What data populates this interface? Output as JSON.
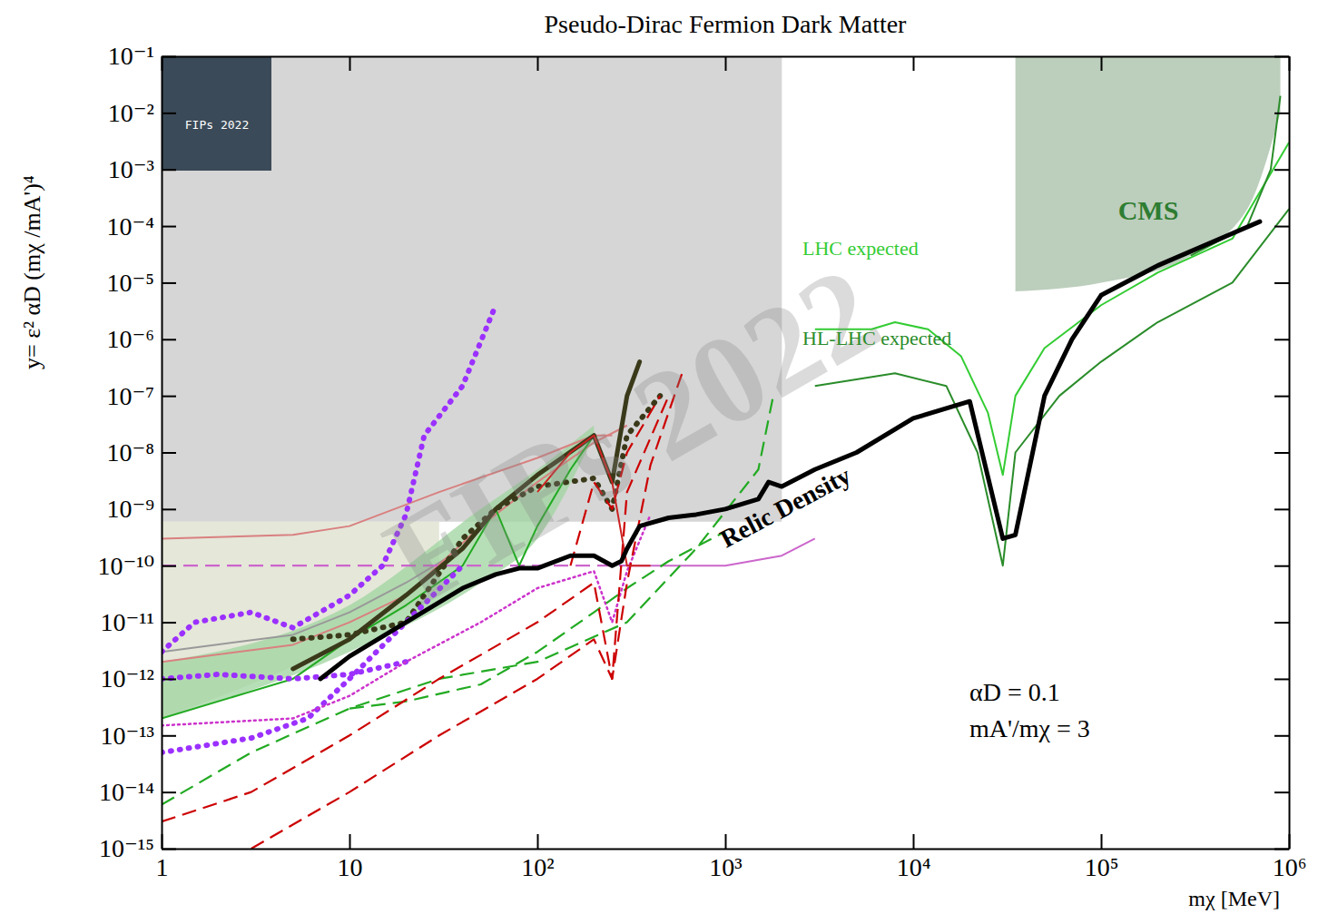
{
  "chart_data": {
    "type": "line",
    "title": "Pseudo-Dirac Fermion Dark Matter",
    "x_label": "mχ [MeV]",
    "y_label": "y= ε² αD (mχ /mA')⁴",
    "log": true,
    "grid": false,
    "xlim": [
      1,
      1000000
    ],
    "ylim": [
      1e-15,
      0.1
    ],
    "xticks": [
      1,
      10,
      {
        "value": 100,
        "label": "10²"
      },
      {
        "value": 1000,
        "label": "10³"
      },
      {
        "value": 10000,
        "label": "10⁴"
      },
      {
        "value": 100000,
        "label": "10⁵"
      },
      {
        "value": 1000000,
        "label": "10⁶"
      }
    ],
    "yticks": [
      {
        "value": 1e-15,
        "label": "10⁻¹⁵"
      },
      {
        "value": 1e-14,
        "label": "10⁻¹⁴"
      },
      {
        "value": 1e-13,
        "label": "10⁻¹³"
      },
      {
        "value": 1e-12,
        "label": "10⁻¹²"
      },
      {
        "value": 1e-11,
        "label": "10⁻¹¹"
      },
      {
        "value": 1e-10,
        "label": "10⁻¹⁰"
      },
      {
        "value": 1e-09,
        "label": "10⁻⁹"
      },
      {
        "value": 1e-08,
        "label": "10⁻⁸"
      },
      {
        "value": 1e-07,
        "label": "10⁻⁷"
      },
      {
        "value": 1e-06,
        "label": "10⁻⁶"
      },
      {
        "value": 1e-05,
        "label": "10⁻⁵"
      },
      {
        "value": 0.0001,
        "label": "10⁻⁴"
      },
      {
        "value": 0.001,
        "label": "10⁻³"
      },
      {
        "value": 0.01,
        "label": "10⁻²"
      },
      {
        "value": 0.1,
        "label": "10⁻¹"
      }
    ],
    "annotations": [
      {
        "text": "CMS",
        "color": "#2e7d32"
      },
      {
        "text": "LHC expected",
        "color": "#33cc33"
      },
      {
        "text": "HL-LHC expected",
        "color": "#2a8c2a"
      },
      {
        "text": "Relic Density",
        "color": "#000000"
      },
      {
        "text": "αD = 0.1",
        "color": "#000000"
      },
      {
        "text": "mA'/mχ = 3",
        "color": "#000000"
      }
    ],
    "watermark": "FIPs 2022",
    "logo": "FIPs 2022",
    "series": [
      {
        "type": "band",
        "color": "#c8c8c8",
        "x": [
          1,
          2000
        ],
        "values": [
          0.1,
          0.1
        ],
        "lower": [
          6e-10,
          6e-10
        ]
      },
      {
        "type": "band",
        "color": "#dcdfcc",
        "x": [
          1,
          10,
          30
        ],
        "values": [
          6e-10,
          6e-10,
          6e-10
        ],
        "lower": [
          2e-13,
          5e-12,
          4e-11
        ]
      },
      {
        "type": "band",
        "color": "#9fd49f",
        "x": [
          1,
          10,
          50,
          100,
          200
        ],
        "values": [
          2e-12,
          2e-11,
          1e-09,
          5e-09,
          3e-08
        ],
        "lower": [
          2e-13,
          3e-12,
          5e-11,
          3e-10,
          2e-08
        ]
      },
      {
        "type": "band",
        "color": "#a6bea6",
        "x": [
          35000,
          100000,
          300000,
          600000,
          900000
        ],
        "values": [
          0.1,
          0.1,
          0.1,
          0.1,
          0.1
        ],
        "lower": [
          7e-06,
          1e-05,
          3e-05,
          0.0002,
          0.01
        ]
      },
      {
        "type": "line",
        "color": "#999999",
        "line_style": "solid",
        "x": [
          1,
          5,
          10,
          20,
          40
        ],
        "values": [
          3e-12,
          6e-12,
          1.5e-11,
          5e-11,
          2e-10
        ]
      },
      {
        "type": "line",
        "color": "#d98080",
        "line_style": "solid",
        "x": [
          1,
          5,
          10,
          30,
          100,
          200,
          250
        ],
        "values": [
          3e-10,
          3.5e-10,
          5e-10,
          2e-09,
          8e-09,
          2e-08,
          2e-08
        ]
      },
      {
        "type": "line",
        "color": "#d98080",
        "line_style": "solid",
        "x": [
          1,
          5,
          10,
          20,
          50,
          100,
          200,
          300
        ],
        "values": [
          2e-12,
          4e-12,
          1e-11,
          3e-11,
          5e-10,
          3e-09,
          1.5e-08,
          3e-08
        ]
      },
      {
        "type": "line",
        "color": "#cc66cc",
        "line_style": "dashed",
        "x": [
          1,
          50,
          300
        ],
        "values": [
          1e-10,
          1e-10,
          1e-10
        ]
      },
      {
        "type": "line",
        "color": "#cc66cc",
        "line_style": "solid",
        "x": [
          300,
          1000,
          2000,
          3000
        ],
        "values": [
          1e-10,
          1e-10,
          1.5e-10,
          3e-10
        ]
      },
      {
        "type": "line",
        "color": "#22aa22",
        "line_style": "solid",
        "x": [
          1,
          5,
          10,
          20,
          40,
          60,
          80,
          100,
          150,
          200
        ],
        "values": [
          2e-13,
          1e-12,
          5e-12,
          2e-11,
          1e-10,
          1e-09,
          1e-10,
          5e-10,
          5e-09,
          2e-08
        ]
      },
      {
        "type": "line",
        "color": "#3a3a1a",
        "line_style": "thick",
        "x": [
          5,
          10,
          20,
          40,
          60,
          100,
          200,
          250,
          300,
          350
        ],
        "values": [
          1.5e-12,
          5e-12,
          3e-11,
          2e-10,
          1e-09,
          4e-09,
          2e-08,
          3e-09,
          1e-07,
          4e-07
        ]
      },
      {
        "type": "line",
        "color": "#3a3a1a",
        "line_style": "thickdotted",
        "x": [
          5,
          10,
          20,
          40,
          60,
          100,
          200,
          250,
          300,
          450
        ],
        "values": [
          5e-12,
          6e-12,
          1e-11,
          3e-10,
          1e-09,
          2.5e-09,
          3.5e-09,
          1e-09,
          2e-08,
          1e-07
        ]
      },
      {
        "type": "line",
        "color": "#9b30ff",
        "line_style": "thickdotted",
        "x": [
          1,
          1.5,
          3,
          5,
          10,
          15,
          20,
          25,
          40,
          60
        ],
        "values": [
          3e-12,
          1e-11,
          1.5e-11,
          8e-12,
          3e-11,
          1e-10,
          8e-10,
          2e-08,
          1.5e-07,
          4e-06
        ]
      },
      {
        "type": "line",
        "color": "#9b30ff",
        "line_style": "thickdotted",
        "x": [
          1,
          3,
          6,
          10,
          20,
          40
        ],
        "values": [
          5e-14,
          9e-14,
          2e-13,
          1e-12,
          1e-11,
          1e-10
        ]
      },
      {
        "type": "line",
        "color": "#9b30ff",
        "line_style": "thickdotted",
        "x": [
          1,
          2,
          5,
          10,
          20
        ],
        "values": [
          1e-12,
          1.2e-12,
          1e-12,
          1.2e-12,
          2e-12
        ]
      },
      {
        "type": "line",
        "color": "#cc33cc",
        "line_style": "dotted",
        "x": [
          1,
          5,
          10,
          20,
          50,
          100,
          200,
          250,
          300,
          400
        ],
        "values": [
          1.5e-13,
          2e-13,
          5e-13,
          2e-12,
          1e-11,
          4e-11,
          8e-11,
          1e-11,
          8e-11,
          8e-10
        ]
      },
      {
        "type": "line",
        "color": "#22aa22",
        "line_style": "dashed",
        "x": [
          1,
          3,
          10,
          30,
          100,
          300,
          700,
          1500,
          1800
        ],
        "values": [
          6e-15,
          5e-14,
          3e-13,
          1e-12,
          2e-12,
          1e-11,
          2e-10,
          5e-09,
          1e-07
        ]
      },
      {
        "type": "line",
        "color": "#22aa22",
        "line_style": "dashed",
        "x": [
          10,
          20,
          50,
          100,
          200,
          300,
          500,
          1000
        ],
        "values": [
          3e-13,
          4e-13,
          8e-13,
          3e-12,
          1.5e-11,
          4e-11,
          1.2e-10,
          4e-10
        ]
      },
      {
        "type": "line",
        "color": "#cc0000",
        "line_style": "dashed",
        "x": [
          1,
          3,
          10,
          30,
          100,
          200,
          250,
          300,
          400,
          600
        ],
        "values": [
          3e-15,
          1e-14,
          1e-13,
          1e-12,
          1e-11,
          5e-11,
          1e-12,
          5e-11,
          6e-09,
          3e-07
        ]
      },
      {
        "type": "line",
        "color": "#cc0000",
        "line_style": "dashed",
        "x": [
          3,
          10,
          30,
          100,
          200,
          250,
          300,
          500
        ],
        "values": [
          1e-15,
          1e-14,
          1e-13,
          1e-12,
          5e-12,
          1e-12,
          2e-09,
          1e-07
        ]
      },
      {
        "type": "line",
        "color": "#cc0000",
        "line_style": "dashed",
        "x": [
          150,
          200,
          250,
          300,
          450
        ],
        "values": [
          1e-10,
          3e-09,
          1e-09,
          1e-08,
          1e-07
        ]
      },
      {
        "type": "line",
        "color": "#cc2222",
        "line_style": "solid",
        "x": [
          100,
          150,
          200,
          250,
          300,
          400
        ],
        "values": [
          2e-09,
          1e-08,
          2e-08,
          3e-09,
          1e-10,
          1e-10
        ]
      },
      {
        "type": "line",
        "color": "#33cc33",
        "line_style": "solid",
        "x": [
          3000,
          6000,
          8000,
          12000,
          18000,
          25000,
          30000,
          35000,
          50000,
          100000,
          200000,
          500000,
          1000000
        ],
        "values": [
          1.5e-06,
          1.5e-06,
          2e-06,
          1.5e-06,
          5e-07,
          5e-08,
          4e-09,
          1e-07,
          7e-07,
          4e-06,
          1.5e-05,
          6e-05,
          0.003
        ]
      },
      {
        "type": "line",
        "color": "#2a8c2a",
        "line_style": "solid",
        "x": [
          3000,
          8000,
          15000,
          22000,
          30000,
          35000,
          60000,
          100000,
          200000,
          500000,
          1000000
        ],
        "values": [
          1.5e-07,
          2.5e-07,
          1.5e-07,
          1e-08,
          1e-10,
          1e-08,
          1e-07,
          4e-07,
          2e-06,
          1e-05,
          0.0002
        ]
      },
      {
        "type": "line",
        "color": "#2a8c2a",
        "line_style": "solid",
        "x": [
          300000,
          600000,
          800000,
          900000
        ],
        "values": [
          3e-05,
          0.0001,
          0.001,
          0.02
        ]
      },
      {
        "type": "line",
        "color": "#000000",
        "line_style": "thick",
        "x": [
          7,
          10,
          20,
          40,
          60,
          80,
          100,
          150,
          200,
          250,
          280,
          300,
          350,
          500,
          700,
          1000,
          1500,
          1700,
          2000,
          3000,
          5000,
          10000,
          20000,
          30000,
          35000,
          50000,
          70000,
          100000,
          200000,
          700000
        ],
        "values": [
          1e-12,
          2.5e-12,
          1e-11,
          4e-11,
          7e-11,
          9e-11,
          9e-11,
          1.5e-10,
          1.5e-10,
          1e-10,
          1.2e-10,
          2e-10,
          5e-10,
          7e-10,
          8e-10,
          1e-09,
          1.5e-09,
          3e-09,
          2.5e-09,
          5e-09,
          1e-08,
          4e-08,
          8e-08,
          3e-10,
          3.5e-10,
          1e-07,
          1e-06,
          6e-06,
          2e-05,
          0.00012
        ]
      }
    ]
  }
}
